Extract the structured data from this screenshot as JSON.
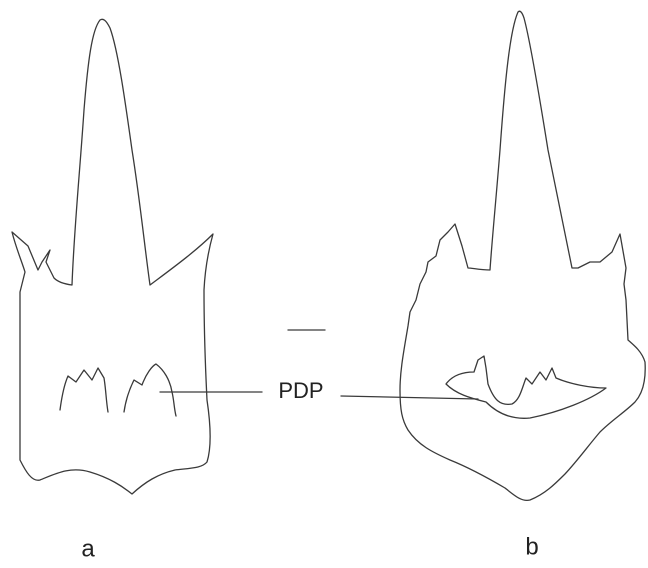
{
  "labels": {
    "structure": "PDP",
    "panel_a": "a",
    "panel_b": "b"
  }
}
